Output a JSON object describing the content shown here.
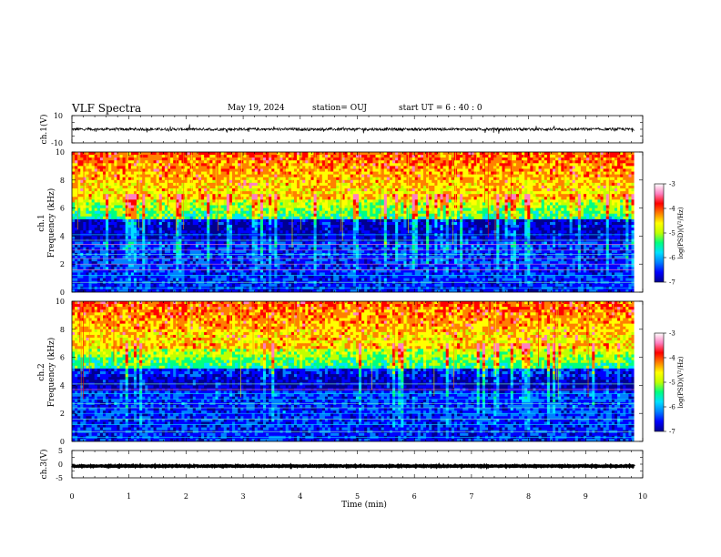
{
  "header": {
    "title": "VLF Spectra",
    "date": "May 19, 2024",
    "station": "station= OUJ",
    "start_ut": "start  UT =   6 : 40 : 0"
  },
  "chart_data": [
    {
      "type": "line",
      "id": "ch1-waveform",
      "ylabel": "ch.1(V)",
      "ylim": [
        -10,
        10
      ],
      "yticks": [
        "10",
        "-10"
      ],
      "xlim": [
        0,
        10
      ],
      "baseline": 0,
      "noise_amplitude": 1
    },
    {
      "type": "heatmap",
      "id": "ch1-spectrogram",
      "ylabel": "ch.1\nFrequency (kHz)",
      "ylim": [
        0,
        10
      ],
      "yticks": [
        "0",
        "2",
        "4",
        "6",
        "8",
        "10"
      ],
      "xlim": [
        0,
        9.85
      ],
      "colorbar": {
        "label": "log(PSD)(V²/Hz)",
        "range": [
          -7,
          -3
        ],
        "ticks": [
          "-3",
          "-4",
          "-5",
          "-6",
          "-7"
        ],
        "colors": [
          "#000090",
          "#0000ff",
          "#0080ff",
          "#00e0ff",
          "#00ff80",
          "#c0ff00",
          "#ffff00",
          "#ff8000",
          "#ff0000",
          "#ff80c0",
          "#ffffff"
        ]
      }
    },
    {
      "type": "heatmap",
      "id": "ch2-spectrogram",
      "ylabel": "ch.2\nFrequency (kHz)",
      "ylim": [
        0,
        10
      ],
      "yticks": [
        "0",
        "2",
        "4",
        "6",
        "8",
        "10"
      ],
      "xlim": [
        0,
        9.85
      ],
      "colorbar": {
        "label": "log(PSD)(V²/Hz)",
        "range": [
          -7,
          -3
        ],
        "ticks": [
          "-3",
          "-4",
          "-5",
          "-6",
          "-7"
        ],
        "colors": [
          "#000090",
          "#0000ff",
          "#0080ff",
          "#00e0ff",
          "#00ff80",
          "#c0ff00",
          "#ffff00",
          "#ff8000",
          "#ff0000",
          "#ff80c0",
          "#ffffff"
        ]
      }
    },
    {
      "type": "line",
      "id": "ch3-waveform",
      "ylabel": "ch.3(V)",
      "ylim": [
        -5,
        5
      ],
      "yticks": [
        "5",
        "0",
        "-5"
      ],
      "xlim": [
        0,
        10
      ],
      "baseline": -0.7,
      "noise_amplitude": 0.15
    }
  ],
  "x_axis": {
    "xlabel": "Time (min)",
    "xlim": [
      0,
      10
    ],
    "ticks": [
      "0",
      "1",
      "2",
      "3",
      "4",
      "5",
      "6",
      "7",
      "8",
      "9",
      "10"
    ]
  }
}
